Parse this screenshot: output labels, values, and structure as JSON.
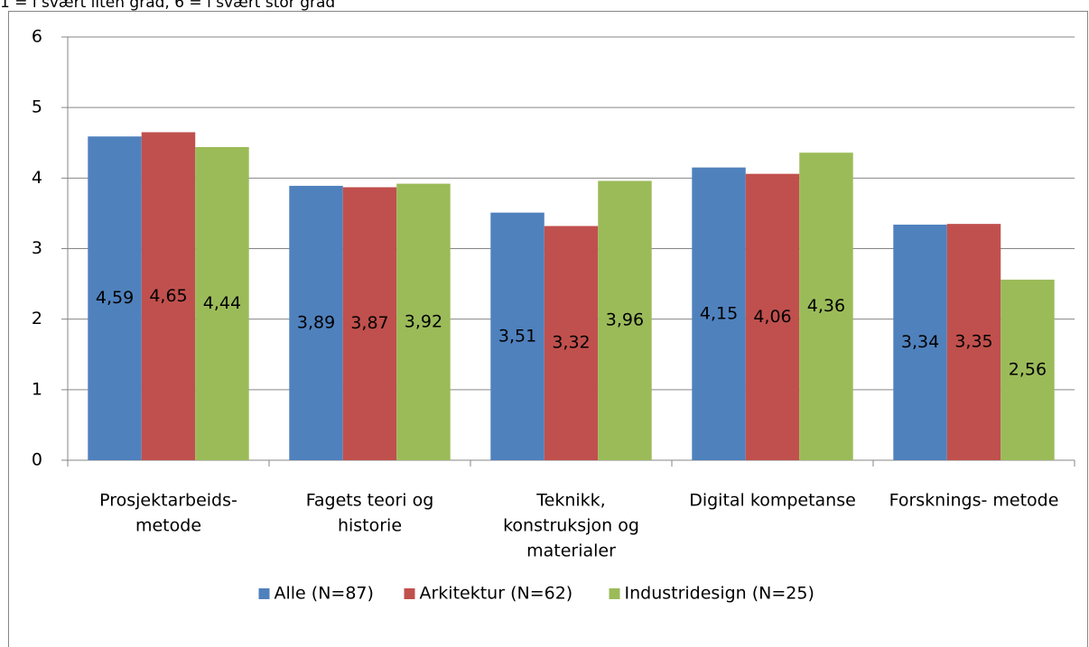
{
  "chart_data": {
    "type": "bar",
    "subtitle": "1 = i svært liten grad, 6 = i svært stor grad",
    "categories": [
      [
        "Prosjektarbeids-",
        "metode"
      ],
      [
        "Fagets teori og",
        "historie"
      ],
      [
        "Teknikk,",
        "konstruksjon og",
        "materialer"
      ],
      [
        "Digital kompetanse"
      ],
      [
        "Forsknings- metode"
      ]
    ],
    "series": [
      {
        "name": "Alle (N=87)",
        "color": "#4f81bd",
        "values": [
          4.59,
          3.89,
          3.51,
          4.15,
          3.34
        ],
        "value_labels": [
          "4,59",
          "3,89",
          "3,51",
          "4,15",
          "3,34"
        ]
      },
      {
        "name": "Arkitektur (N=62)",
        "color": "#c0504d",
        "values": [
          4.65,
          3.87,
          3.32,
          4.06,
          3.35
        ],
        "value_labels": [
          "4,65",
          "3,87",
          "3,32",
          "4,06",
          "3,35"
        ]
      },
      {
        "name": "Industridesign (N=25)",
        "color": "#9bbb59",
        "values": [
          4.44,
          3.92,
          3.96,
          4.36,
          2.56
        ],
        "value_labels": [
          "4,44",
          "3,92",
          "3,96",
          "4,36",
          "2,56"
        ]
      }
    ],
    "ylim": [
      0,
      6
    ],
    "yticks": [
      0,
      1,
      2,
      3,
      4,
      5,
      6
    ],
    "grid": true,
    "legend": "bottom"
  }
}
